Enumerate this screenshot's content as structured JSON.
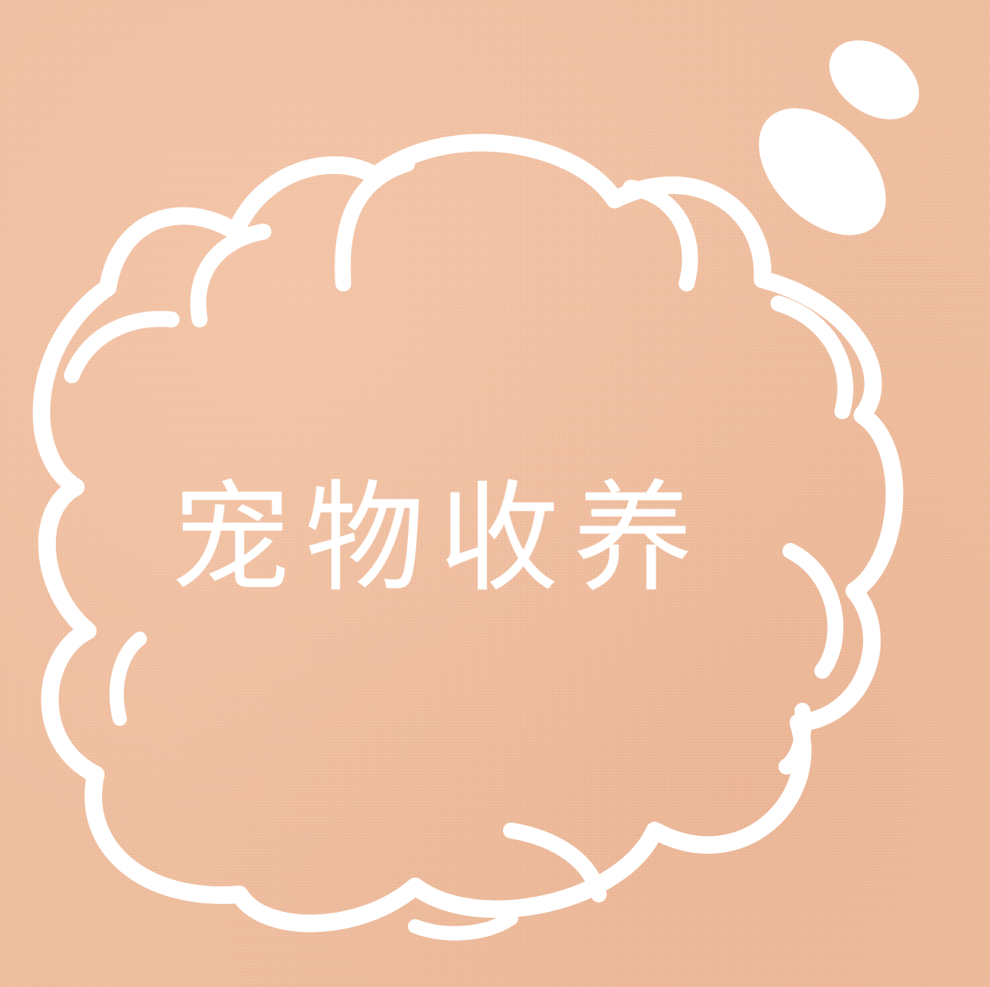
{
  "title": "宠物收养",
  "colors": {
    "background": "#efbe9f",
    "outline": "#ffffff",
    "text": "#ffffff"
  }
}
